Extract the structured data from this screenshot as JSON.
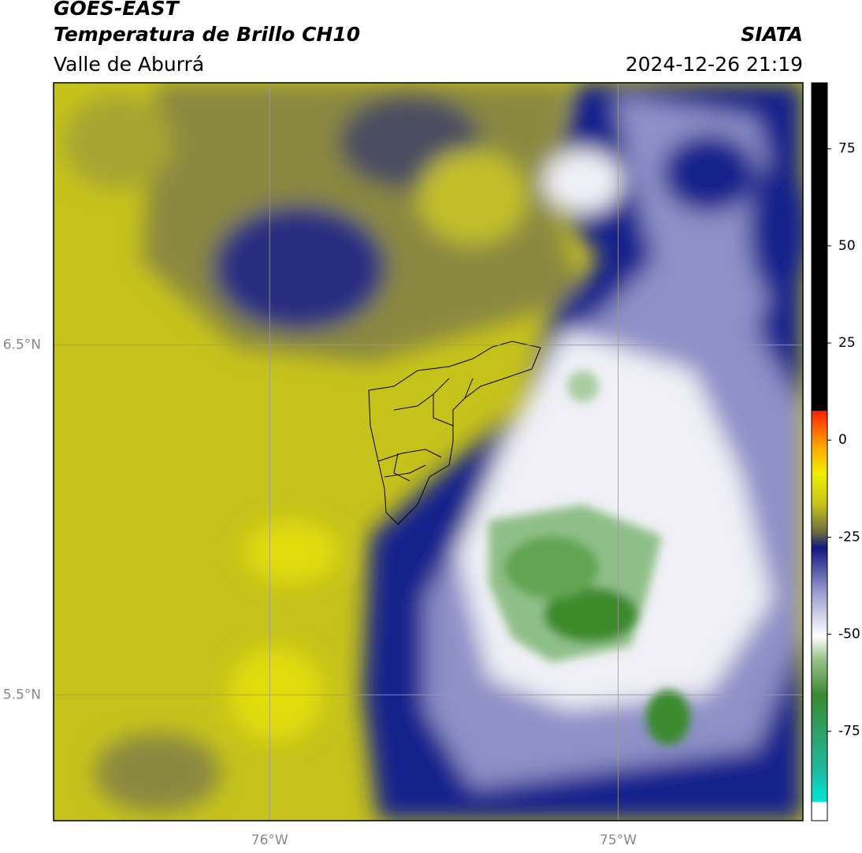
{
  "header": {
    "satellite": "GOES-EAST",
    "product": "Temperatura de Brillo CH10",
    "region": "Valle de Aburrá",
    "source": "SIATA",
    "datetime": "2024-12-26 21:19"
  },
  "map": {
    "xlim": [
      -76.62,
      -74.47
    ],
    "ylim": [
      5.14,
      7.25
    ],
    "xticks": [
      {
        "value": -76,
        "label": "76°W"
      },
      {
        "value": -75,
        "label": "75°W"
      }
    ],
    "yticks": [
      {
        "value": 6.5,
        "label": "6.5°N"
      },
      {
        "value": 5.5,
        "label": "5.5°N"
      }
    ],
    "grid": true
  },
  "colorbar": {
    "lim": [
      -98,
      92
    ],
    "ticks": [
      75,
      50,
      25,
      0,
      -25,
      -50,
      -75
    ]
  }
}
